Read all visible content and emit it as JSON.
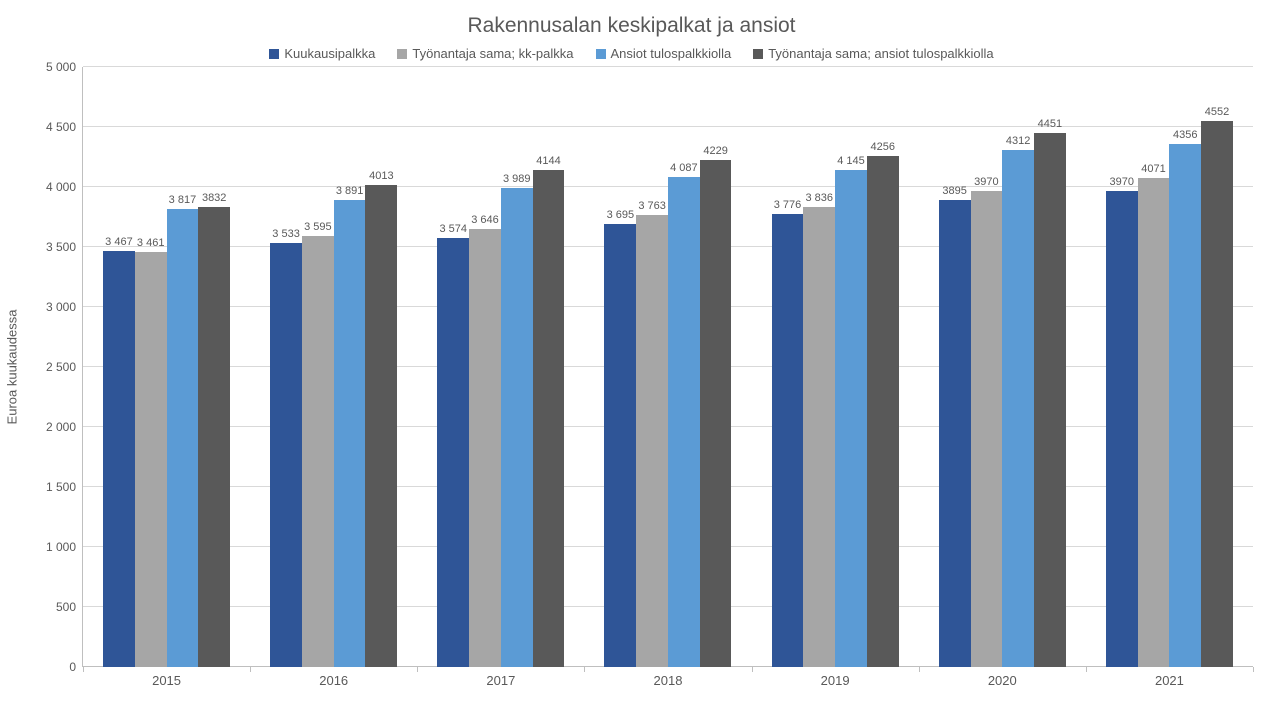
{
  "chart": {
    "type": "bar",
    "title": "Rakennusalan keskipalkat ja ansiot",
    "title_fontsize": 21,
    "title_color": "#595959",
    "ylabel": "Euroa kuukaudessa",
    "ylabel_fontsize": 13,
    "background_color": "#ffffff",
    "grid_color": "#d9d9d9",
    "axis_color": "#bfbfbf",
    "text_color": "#595959",
    "data_label_fontsize": 11,
    "tick_fontsize": 12,
    "ylim": [
      0,
      5000
    ],
    "ytick_step": 500,
    "yticks": [
      "0",
      "500",
      "1 000",
      "1 500",
      "2 000",
      "2 500",
      "3 000",
      "3 500",
      "4 000",
      "4 500",
      "5 000"
    ],
    "categories": [
      "2015",
      "2016",
      "2017",
      "2018",
      "2019",
      "2020",
      "2021"
    ],
    "legend_position": "top-center",
    "series": [
      {
        "label": "Kuukausipalkka",
        "color": "#2f5597",
        "values": [
          3467,
          3533,
          3574,
          3695,
          3776,
          3895,
          3970
        ],
        "display": [
          "3 467",
          "3 533",
          "3 574",
          "3 695",
          "3 776",
          "3895",
          "3970"
        ]
      },
      {
        "label": "Työnantaja sama; kk-palkka",
        "color": "#a6a6a6",
        "values": [
          3461,
          3595,
          3646,
          3763,
          3836,
          3970,
          4071
        ],
        "display": [
          "3 461",
          "3 595",
          "3 646",
          "3 763",
          "3 836",
          "3970",
          "4071"
        ]
      },
      {
        "label": "Ansiot tulospalkkiolla",
        "color": "#5b9bd5",
        "values": [
          3817,
          3891,
          3989,
          4087,
          4145,
          4312,
          4356
        ],
        "display": [
          "3 817",
          "3 891",
          "3 989",
          "4 087",
          "4 145",
          "4312",
          "4356"
        ]
      },
      {
        "label": "Työnantaja sama; ansiot tulospalkkiolla",
        "color": "#595959",
        "values": [
          3832,
          4013,
          4144,
          4229,
          4256,
          4451,
          4552
        ],
        "display": [
          "3832",
          "4013",
          "4144",
          "4229",
          "4256",
          "4451",
          "4552"
        ]
      }
    ],
    "bar_width_rel": 0.19,
    "group_gap_rel": 0.1
  }
}
